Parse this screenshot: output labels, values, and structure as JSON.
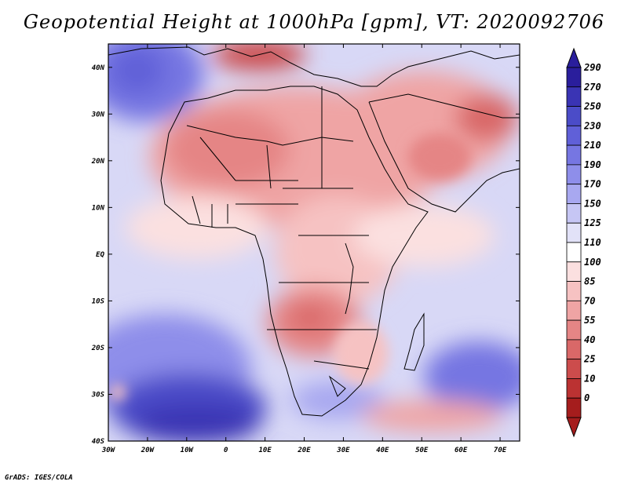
{
  "title": "Geopotential Height at 1000hPa [gpm], VT: 2020092706",
  "credit": "GrADS: IGES/COLA",
  "axes": {
    "lon_labels": [
      "30W",
      "20W",
      "10W",
      "0",
      "10E",
      "20E",
      "30E",
      "40E",
      "50E",
      "60E",
      "70E"
    ],
    "lat_labels": [
      "40N",
      "30N",
      "20N",
      "10N",
      "EQ",
      "10S",
      "20S",
      "30S",
      "40S"
    ]
  },
  "colorbar": {
    "labels": [
      "290",
      "270",
      "250",
      "230",
      "210",
      "190",
      "170",
      "150",
      "125",
      "110",
      "100",
      "85",
      "70",
      "55",
      "40",
      "25",
      "10",
      "0"
    ],
    "colors": [
      "#2a1e9c",
      "#3a34b4",
      "#4b4cc8",
      "#6060d8",
      "#7676e2",
      "#8e8eea",
      "#a8a8f0",
      "#c6c6f4",
      "#e2e2f8",
      "#ffffff",
      "#fbe0e0",
      "#f6c2c2",
      "#efa4a4",
      "#e58585",
      "#d96868",
      "#cc4c4c",
      "#bb3232",
      "#a51d1d"
    ],
    "top_arrow_color": "#2a1e9c",
    "bottom_arrow_color": "#a51d1d"
  },
  "colors": {
    "ocean_low_blue": "#8e8eea",
    "deep_blue": "#3a34b4",
    "land_red": "#efa4a4",
    "dark_red": "#cc4c4c",
    "neutral": "#ffffff"
  }
}
